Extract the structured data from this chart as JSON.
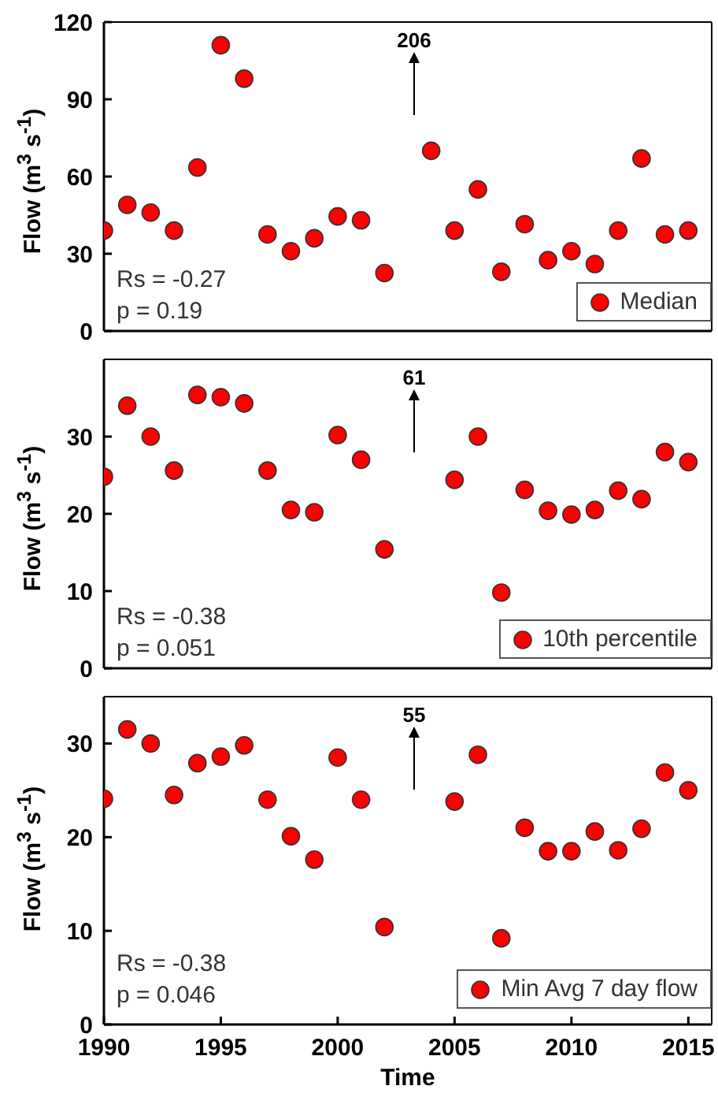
{
  "chart_data": [
    {
      "type": "scatter",
      "ylabel": "Flow (m$^{3}$ s$^{-1}$)",
      "x": [
        1990,
        1991,
        1992,
        1993,
        1994,
        1995,
        1996,
        1997,
        1998,
        1999,
        2000,
        2001,
        2002,
        2004,
        2005,
        2006,
        2007,
        2008,
        2009,
        2010,
        2011,
        2012,
        2013,
        2014,
        2015
      ],
      "series": [
        {
          "name": "Median",
          "color": "#ff0000",
          "values": [
            39,
            49,
            46,
            39,
            63.5,
            111,
            98,
            37.5,
            31,
            36,
            44.5,
            43,
            22.5,
            70,
            39,
            55,
            23,
            41.5,
            27.5,
            31,
            26,
            39,
            67,
            37.5,
            39
          ]
        }
      ],
      "xlim": [
        1990,
        2016
      ],
      "xticks": [
        1990,
        1995,
        2000,
        2005,
        2010,
        2015
      ],
      "ylim": [
        0,
        120
      ],
      "yticks": [
        0,
        30,
        60,
        90,
        120
      ],
      "tick_labels": "y",
      "grid": false,
      "legend": "bottom right",
      "marker": "circle",
      "annotations": [
        "206",
        "Rs = -0.27",
        "p = 0.19"
      ]
    },
    {
      "type": "scatter",
      "ylabel": "Flow (m$^{3}$ s$^{-1}$)",
      "x": [
        1990,
        1991,
        1992,
        1993,
        1994,
        1995,
        1996,
        1997,
        1998,
        1999,
        2000,
        2001,
        2002,
        2005,
        2006,
        2007,
        2008,
        2009,
        2010,
        2011,
        2012,
        2013,
        2014,
        2015
      ],
      "series": [
        {
          "name": "10th percentile",
          "color": "#ff0000",
          "values": [
            24.8,
            34,
            30,
            25.6,
            35.4,
            35.1,
            34.3,
            25.6,
            20.5,
            20.2,
            30.2,
            27,
            15.4,
            24.4,
            30,
            9.8,
            23.1,
            20.4,
            19.9,
            20.5,
            23,
            21.9,
            28,
            26.7
          ]
        }
      ],
      "xlim": [
        1990,
        2016
      ],
      "xticks": [
        1990,
        1995,
        2000,
        2005,
        2010,
        2015
      ],
      "ylim": [
        0,
        40
      ],
      "yticks": [
        0,
        10,
        20,
        30
      ],
      "tick_labels": "y",
      "grid": false,
      "legend": "bottom right",
      "marker": "circle",
      "annotations": [
        "61",
        "Rs = -0.38",
        "p = 0.051"
      ]
    },
    {
      "type": "scatter",
      "xlabel": "Time",
      "ylabel": "Flow (m$^{3}$ s$^{-1}$)",
      "x": [
        1990,
        1991,
        1992,
        1993,
        1994,
        1995,
        1996,
        1997,
        1998,
        1999,
        2000,
        2001,
        2002,
        2005,
        2006,
        2007,
        2008,
        2009,
        2010,
        2011,
        2012,
        2013,
        2014,
        2015
      ],
      "series": [
        {
          "name": "Min Avg 7 day flow",
          "color": "#ff0000",
          "values": [
            24.1,
            31.5,
            30,
            24.5,
            27.9,
            28.6,
            29.8,
            24,
            20.1,
            17.6,
            28.5,
            24,
            10.4,
            23.8,
            28.8,
            9.2,
            21,
            18.5,
            18.5,
            20.6,
            18.6,
            20.9,
            26.9,
            25
          ]
        }
      ],
      "xlim": [
        1990,
        2016
      ],
      "xticks": [
        1990,
        1995,
        2000,
        2005,
        2010,
        2015
      ],
      "ylim": [
        0,
        35
      ],
      "yticks": [
        0,
        10,
        20,
        30
      ],
      "grid": false,
      "legend": "bottom right",
      "marker": "circle",
      "annotations": [
        "55",
        "Rs = -0.38",
        "p = 0.046"
      ]
    }
  ]
}
